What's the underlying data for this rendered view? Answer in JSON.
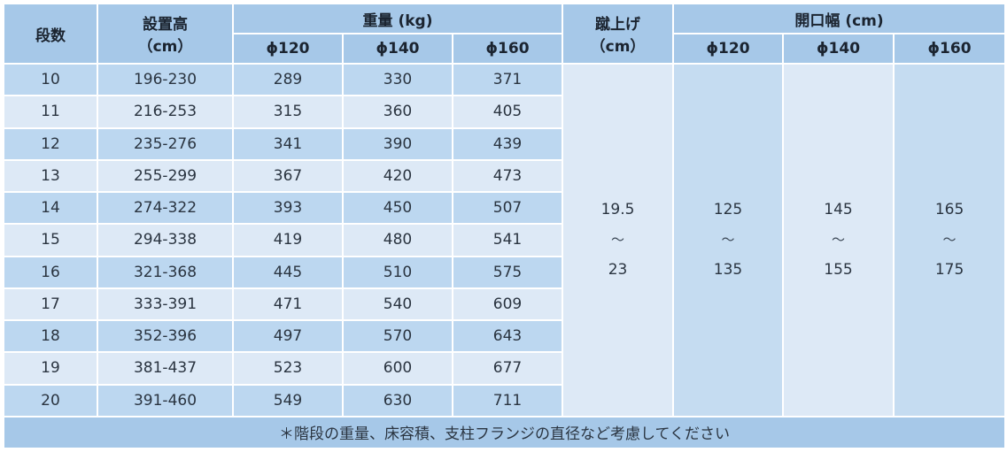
{
  "header": {
    "dansu": "段数",
    "setchi_title": "設置高",
    "setchi_unit": "（cm）",
    "weight_title": "重量 (kg)",
    "kick_title": "蹴上げ",
    "kick_unit": "（cm）",
    "open_title": "開口幅 (cm)",
    "diameters": [
      "ϕ120",
      "ϕ140",
      "ϕ160"
    ]
  },
  "rows": [
    {
      "steps": "10",
      "height": "196-230",
      "w120": "289",
      "w140": "330",
      "w160": "371"
    },
    {
      "steps": "11",
      "height": "216-253",
      "w120": "315",
      "w140": "360",
      "w160": "405"
    },
    {
      "steps": "12",
      "height": "235-276",
      "w120": "341",
      "w140": "390",
      "w160": "439"
    },
    {
      "steps": "13",
      "height": "255-299",
      "w120": "367",
      "w140": "420",
      "w160": "473"
    },
    {
      "steps": "14",
      "height": "274-322",
      "w120": "393",
      "w140": "450",
      "w160": "507"
    },
    {
      "steps": "15",
      "height": "294-338",
      "w120": "419",
      "w140": "480",
      "w160": "541"
    },
    {
      "steps": "16",
      "height": "321-368",
      "w120": "445",
      "w140": "510",
      "w160": "575"
    },
    {
      "steps": "17",
      "height": "333-391",
      "w120": "471",
      "w140": "540",
      "w160": "609"
    },
    {
      "steps": "18",
      "height": "352-396",
      "w120": "497",
      "w140": "570",
      "w160": "643"
    },
    {
      "steps": "19",
      "height": "381-437",
      "w120": "523",
      "w140": "600",
      "w160": "677"
    },
    {
      "steps": "20",
      "height": "391-460",
      "w120": "549",
      "w140": "630",
      "w160": "711"
    }
  ],
  "merged": {
    "tilde": "〜",
    "kick": {
      "from": "19.5",
      "to": "23"
    },
    "open120": {
      "from": "125",
      "to": "135"
    },
    "open140": {
      "from": "145",
      "to": "155"
    },
    "open160": {
      "from": "165",
      "to": "175"
    }
  },
  "footnote": "＊階段の重量、床容積、支柱フランジの直径など考慮してください"
}
